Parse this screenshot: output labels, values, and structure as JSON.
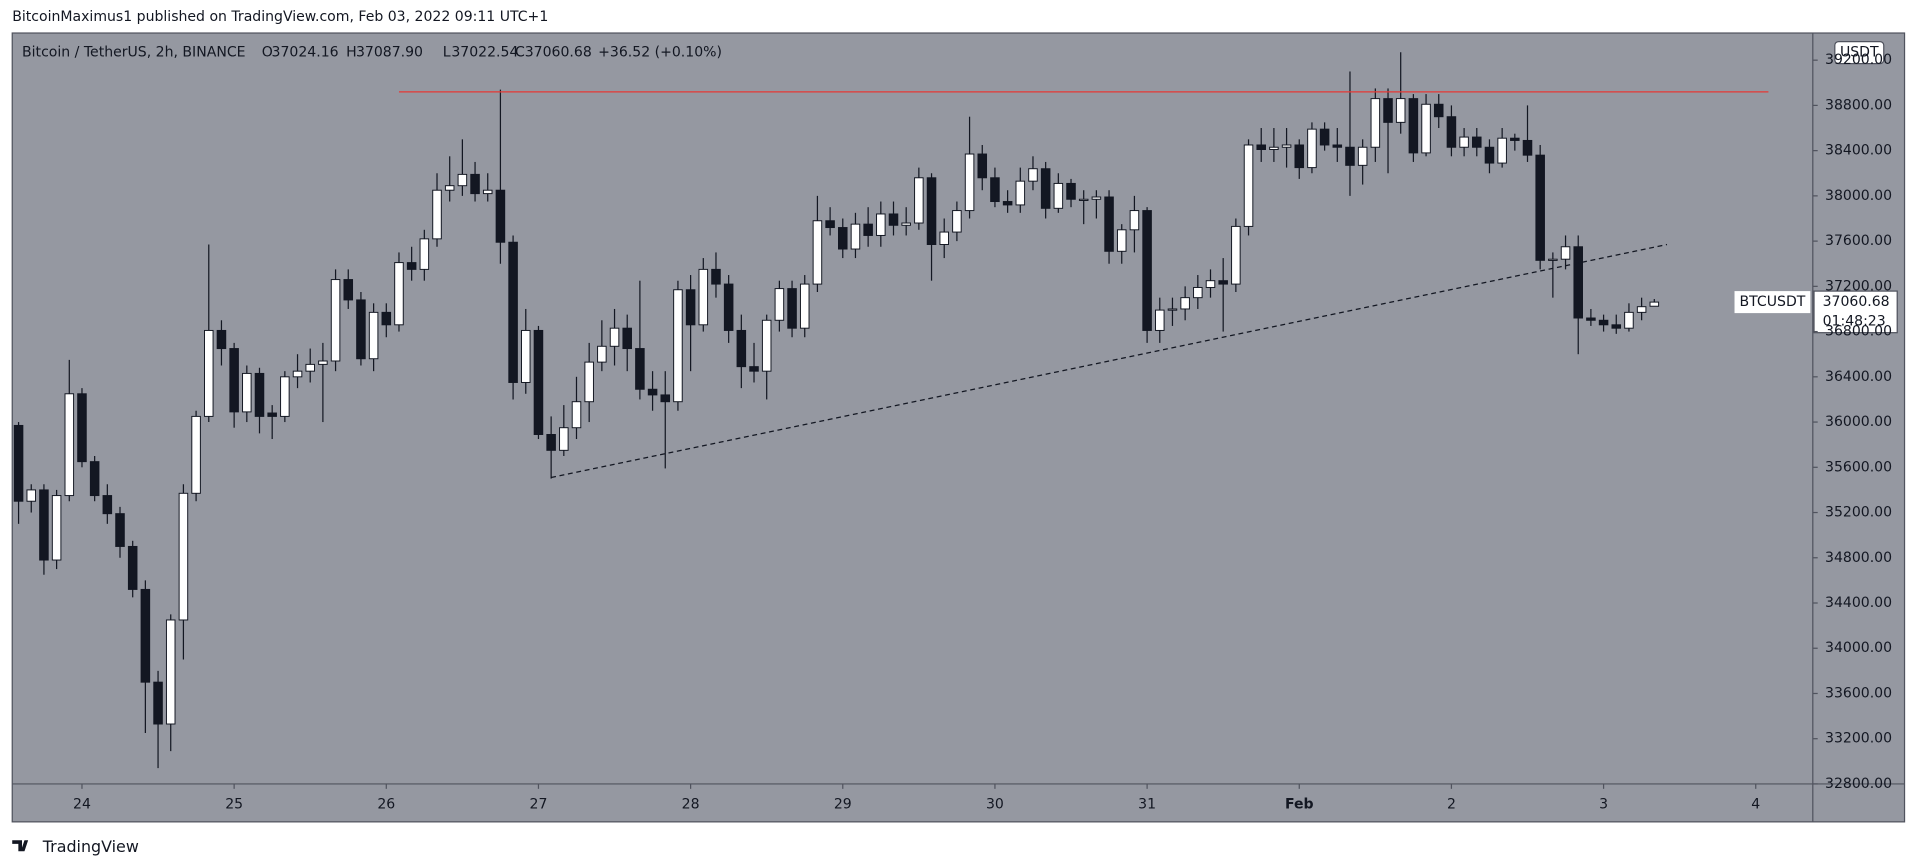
{
  "header": {
    "publisher": "BitcoinMaximus1 published on TradingView.com, Feb 03, 2022 09:11 UTC+1"
  },
  "legend": {
    "symbol": "Bitcoin / TetherUS, 2h, BINANCE",
    "open_key": "O",
    "open": "37024.16",
    "high_key": "H",
    "high": "37087.90",
    "low_key": "L",
    "low": "37022.54",
    "close_key": "C",
    "close": "37060.68",
    "change": "+36.52 (+0.10%)"
  },
  "price_axis": {
    "currency": "USDT",
    "ticker": "BTCUSDT",
    "last_price": "37060.68",
    "countdown": "01:48:23"
  },
  "footer": {
    "brand": "TradingView"
  },
  "chart_data": {
    "type": "candlestick",
    "up_color": "#ffffff",
    "down_color": "#131722",
    "background": "#9598a1",
    "x": [
      -10,
      -8,
      -6,
      -4,
      -2,
      0,
      2,
      4,
      6,
      8,
      10,
      12,
      14,
      16,
      18,
      20,
      22,
      24,
      26,
      28,
      30,
      32,
      34,
      36,
      38,
      40,
      42,
      44,
      46,
      48,
      50,
      52,
      54,
      56,
      58,
      60,
      62,
      64,
      66,
      68,
      70,
      72,
      74,
      76,
      78,
      80,
      82,
      84,
      86,
      88,
      90,
      92,
      94,
      96,
      98,
      100,
      102,
      104,
      106,
      108,
      110,
      112,
      114,
      116,
      118,
      120,
      122,
      124,
      126,
      128,
      130,
      132,
      134,
      136,
      138,
      140,
      142,
      144,
      146,
      148,
      150,
      152,
      154,
      156,
      158,
      160,
      162,
      164,
      166,
      168,
      170,
      172,
      174,
      176,
      178,
      180,
      182,
      184,
      186,
      188,
      190,
      192,
      194,
      196,
      198,
      200,
      202,
      204,
      206,
      208,
      210,
      212,
      214,
      216,
      218,
      220,
      222,
      224,
      226,
      228,
      230,
      232,
      234,
      236,
      238,
      240,
      242,
      244,
      246,
      248
    ],
    "ohlc": [
      [
        35970,
        36000,
        35100,
        35300
      ],
      [
        35300,
        35450,
        35200,
        35400
      ],
      [
        35400,
        35450,
        34650,
        34780
      ],
      [
        34780,
        35400,
        34700,
        35350
      ],
      [
        35350,
        36550,
        35300,
        36250
      ],
      [
        36250,
        36300,
        35600,
        35650
      ],
      [
        35650,
        35700,
        35300,
        35350
      ],
      [
        35350,
        35450,
        35100,
        35190
      ],
      [
        35190,
        35250,
        34800,
        34900
      ],
      [
        34900,
        34950,
        34450,
        34520
      ],
      [
        34520,
        34600,
        33250,
        33700
      ],
      [
        33700,
        33800,
        32940,
        33330
      ],
      [
        33330,
        34300,
        33090,
        34250
      ],
      [
        34250,
        35450,
        33900,
        35370
      ],
      [
        35370,
        36100,
        35300,
        36050
      ],
      [
        36050,
        37570,
        36000,
        36810
      ],
      [
        36810,
        36900,
        36500,
        36650
      ],
      [
        36650,
        36700,
        35950,
        36090
      ],
      [
        36090,
        36500,
        36000,
        36430
      ],
      [
        36430,
        36480,
        35900,
        36050
      ],
      [
        36080,
        36150,
        35850,
        36050
      ],
      [
        36050,
        36450,
        36000,
        36400
      ],
      [
        36400,
        36600,
        36300,
        36450
      ],
      [
        36450,
        36650,
        36350,
        36510
      ],
      [
        36510,
        36700,
        36000,
        36540
      ],
      [
        36540,
        37350,
        36450,
        37260
      ],
      [
        37260,
        37350,
        37000,
        37080
      ],
      [
        37080,
        37150,
        36500,
        36560
      ],
      [
        36560,
        37050,
        36450,
        36970
      ],
      [
        36970,
        37050,
        36750,
        36860
      ],
      [
        36860,
        37500,
        36800,
        37410
      ],
      [
        37410,
        37550,
        37250,
        37350
      ],
      [
        37350,
        37700,
        37250,
        37620
      ],
      [
        37620,
        38200,
        37550,
        38050
      ],
      [
        38050,
        38350,
        37950,
        38090
      ],
      [
        38090,
        38500,
        38000,
        38190
      ],
      [
        38190,
        38300,
        37950,
        38020
      ],
      [
        38020,
        38200,
        37950,
        38050
      ],
      [
        38050,
        38940,
        37400,
        37590
      ],
      [
        37590,
        37650,
        36200,
        36350
      ],
      [
        36350,
        37000,
        36250,
        36810
      ],
      [
        36810,
        36850,
        35850,
        35890
      ],
      [
        35890,
        36050,
        35500,
        35750
      ],
      [
        35750,
        36150,
        35700,
        35950
      ],
      [
        35950,
        36400,
        35850,
        36180
      ],
      [
        36180,
        36700,
        36000,
        36530
      ],
      [
        36530,
        36900,
        36450,
        36670
      ],
      [
        36670,
        37000,
        36500,
        36830
      ],
      [
        36830,
        36950,
        36450,
        36650
      ],
      [
        36650,
        37250,
        36200,
        36290
      ],
      [
        36290,
        36450,
        36100,
        36240
      ],
      [
        36240,
        36450,
        35590,
        36180
      ],
      [
        36180,
        37250,
        36100,
        37170
      ],
      [
        37170,
        37300,
        36450,
        36860
      ],
      [
        36860,
        37450,
        36800,
        37350
      ],
      [
        37350,
        37500,
        37100,
        37220
      ],
      [
        37220,
        37300,
        36700,
        36810
      ],
      [
        36810,
        36950,
        36300,
        36490
      ],
      [
        36490,
        36700,
        36350,
        36450
      ],
      [
        36450,
        36950,
        36200,
        36900
      ],
      [
        36900,
        37250,
        36800,
        37180
      ],
      [
        37180,
        37250,
        36750,
        36830
      ],
      [
        36830,
        37300,
        36750,
        37220
      ],
      [
        37220,
        38000,
        37150,
        37780
      ],
      [
        37780,
        37900,
        37650,
        37720
      ],
      [
        37720,
        37800,
        37450,
        37530
      ],
      [
        37530,
        37850,
        37450,
        37750
      ],
      [
        37750,
        37900,
        37550,
        37650
      ],
      [
        37650,
        37950,
        37550,
        37840
      ],
      [
        37840,
        37950,
        37650,
        37740
      ],
      [
        37740,
        37900,
        37650,
        37760
      ],
      [
        37760,
        38250,
        37700,
        38160
      ],
      [
        38160,
        38200,
        37250,
        37570
      ],
      [
        37570,
        37800,
        37450,
        37680
      ],
      [
        37680,
        37950,
        37600,
        37870
      ],
      [
        37870,
        38700,
        37800,
        38370
      ],
      [
        38370,
        38450,
        38050,
        38160
      ],
      [
        38160,
        38250,
        37900,
        37950
      ],
      [
        37950,
        38050,
        37850,
        37920
      ],
      [
        37920,
        38250,
        37850,
        38130
      ],
      [
        38130,
        38350,
        38050,
        38240
      ],
      [
        38240,
        38300,
        37800,
        37890
      ],
      [
        37890,
        38200,
        37850,
        38110
      ],
      [
        38110,
        38150,
        37900,
        37970
      ],
      [
        37970,
        38050,
        37750,
        37970
      ],
      [
        37970,
        38050,
        37800,
        37990
      ],
      [
        37990,
        38050,
        37400,
        37510
      ],
      [
        37510,
        37750,
        37400,
        37700
      ],
      [
        37700,
        38000,
        37500,
        37870
      ],
      [
        37870,
        37900,
        36700,
        36810
      ],
      [
        36810,
        37100,
        36700,
        36990
      ],
      [
        36990,
        37100,
        36850,
        37000
      ],
      [
        37000,
        37200,
        36900,
        37100
      ],
      [
        37100,
        37300,
        37000,
        37190
      ],
      [
        37190,
        37350,
        37100,
        37250
      ],
      [
        37250,
        37450,
        36800,
        37220
      ],
      [
        37220,
        37800,
        37150,
        37730
      ],
      [
        37730,
        38500,
        37650,
        38450
      ],
      [
        38450,
        38600,
        38300,
        38410
      ],
      [
        38410,
        38600,
        38300,
        38430
      ],
      [
        38430,
        38600,
        38250,
        38450
      ],
      [
        38450,
        38500,
        38150,
        38250
      ],
      [
        38250,
        38650,
        38200,
        38590
      ],
      [
        38590,
        38650,
        38400,
        38450
      ],
      [
        38450,
        38600,
        38300,
        38430
      ],
      [
        38430,
        39100,
        38000,
        38270
      ],
      [
        38270,
        38500,
        38100,
        38430
      ],
      [
        38430,
        38950,
        38300,
        38860
      ],
      [
        38860,
        38950,
        38200,
        38650
      ],
      [
        38650,
        39270,
        38550,
        38860
      ],
      [
        38860,
        38900,
        38300,
        38380
      ],
      [
        38380,
        38900,
        38350,
        38810
      ],
      [
        38810,
        38900,
        38600,
        38700
      ],
      [
        38700,
        38800,
        38350,
        38430
      ],
      [
        38430,
        38600,
        38350,
        38520
      ],
      [
        38520,
        38600,
        38350,
        38430
      ],
      [
        38430,
        38500,
        38200,
        38290
      ],
      [
        38290,
        38600,
        38250,
        38510
      ],
      [
        38510,
        38550,
        38400,
        38490
      ],
      [
        38490,
        38800,
        38300,
        38360
      ],
      [
        38360,
        38450,
        37350,
        37430
      ],
      [
        37430,
        37500,
        37100,
        37440
      ],
      [
        37440,
        37650,
        37350,
        37550
      ],
      [
        37550,
        37650,
        36600,
        36920
      ],
      [
        36920,
        37000,
        36850,
        36900
      ],
      [
        36900,
        36950,
        36800,
        36860
      ],
      [
        36860,
        36950,
        36780,
        36830
      ],
      [
        36830,
        37050,
        36800,
        36970
      ],
      [
        36970,
        37100,
        36900,
        37020
      ],
      [
        37024.16,
        37087.9,
        37022.54,
        37060.68
      ]
    ],
    "lines": [
      {
        "x": [
          50,
          266
        ],
        "y": [
          38920,
          38920
        ],
        "color": "#e53935",
        "style": "solid"
      },
      {
        "x": [
          74,
          250
        ],
        "y": [
          35510,
          37570
        ],
        "color": "#131722",
        "style": "dashed"
      }
    ],
    "xlim": [
      -11,
      273
    ],
    "xticks": [
      {
        "value": 0,
        "label": "24"
      },
      {
        "value": 24,
        "label": "25"
      },
      {
        "value": 48,
        "label": "26"
      },
      {
        "value": 72,
        "label": "27"
      },
      {
        "value": 96,
        "label": "28"
      },
      {
        "value": 120,
        "label": "29"
      },
      {
        "value": 144,
        "label": "30"
      },
      {
        "value": 168,
        "label": "31"
      },
      {
        "value": 192,
        "label": "Feb"
      },
      {
        "value": 216,
        "label": "2"
      },
      {
        "value": 240,
        "label": "3"
      },
      {
        "value": 264,
        "label": "4"
      }
    ],
    "ylim": [
      32800,
      39440
    ],
    "yticks": [
      {
        "value": 32800,
        "label": "32800.00"
      },
      {
        "value": 33200,
        "label": "33200.00"
      },
      {
        "value": 33600,
        "label": "33600.00"
      },
      {
        "value": 34000,
        "label": "34000.00"
      },
      {
        "value": 34400,
        "label": "34400.00"
      },
      {
        "value": 34800,
        "label": "34800.00"
      },
      {
        "value": 35200,
        "label": "35200.00"
      },
      {
        "value": 35600,
        "label": "35600.00"
      },
      {
        "value": 36000,
        "label": "36000.00"
      },
      {
        "value": 36400,
        "label": "36400.00"
      },
      {
        "value": 36800,
        "label": "36800.00"
      },
      {
        "value": 37200,
        "label": "37200.00"
      },
      {
        "value": 37600,
        "label": "37600.00"
      },
      {
        "value": 38000,
        "label": "38000.00"
      },
      {
        "value": 38400,
        "label": "38400.00"
      },
      {
        "value": 38800,
        "label": "38800.00"
      },
      {
        "value": 39200,
        "label": "39200.00"
      }
    ]
  }
}
